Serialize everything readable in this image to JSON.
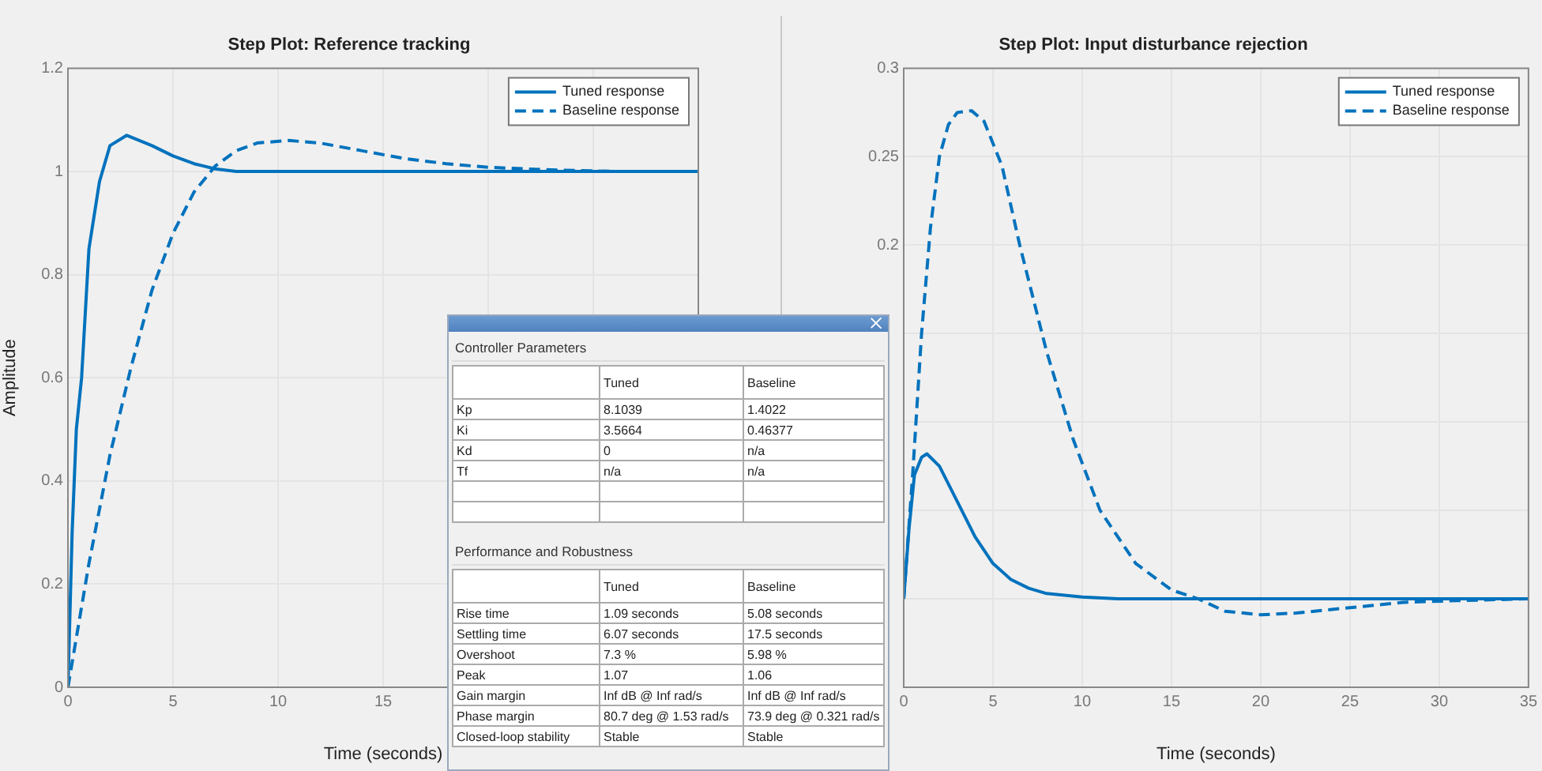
{
  "chart_data": [
    {
      "type": "line",
      "title": "Step Plot: Reference tracking",
      "xlabel": "Time (seconds)",
      "ylabel": "Amplitude",
      "xlim": [
        0,
        30
      ],
      "xticks": [
        0,
        5,
        10,
        15,
        {
          "value": 20,
          "label": null
        },
        {
          "value": 25,
          "label": null
        },
        {
          "value": 30,
          "label": null
        }
      ],
      "ylim": [
        0,
        1.2
      ],
      "yticks": [
        0,
        0.2,
        0.4,
        0.6,
        0.8,
        1,
        1.2
      ],
      "grid": true,
      "legend": "top right",
      "marker": "none",
      "series": [
        {
          "name": "Tuned response",
          "color": "#0072bd",
          "line_style": "solid",
          "x": [
            0,
            0.2,
            0.4,
            0.65,
            1,
            1.5,
            2,
            2.8,
            4,
            5,
            6,
            7,
            8,
            10,
            15,
            20,
            25,
            30
          ],
          "values": [
            0,
            0.3,
            0.5,
            0.6,
            0.85,
            0.98,
            1.05,
            1.07,
            1.05,
            1.03,
            1.015,
            1.005,
            1,
            1,
            1,
            1,
            1,
            1
          ]
        },
        {
          "name": "Baseline response",
          "color": "#0072bd",
          "line_style": "dashed",
          "x": [
            0,
            0.5,
            1,
            2,
            3,
            4,
            5,
            6,
            7,
            8,
            9,
            10.5,
            12,
            14,
            16,
            18,
            20,
            23,
            26,
            30
          ],
          "values": [
            0,
            0.12,
            0.24,
            0.45,
            0.62,
            0.77,
            0.88,
            0.96,
            1.01,
            1.04,
            1.055,
            1.06,
            1.055,
            1.04,
            1.025,
            1.015,
            1.008,
            1.003,
            1,
            1
          ]
        }
      ]
    },
    {
      "type": "line",
      "title": "Step Plot: Input disturbance rejection",
      "xlabel": "Time (seconds)",
      "xlim": [
        0,
        35
      ],
      "xticks": [
        0,
        5,
        10,
        15,
        20,
        25,
        30,
        35
      ],
      "ylim": [
        -0.05,
        0.3
      ],
      "yticks": [
        {
          "value": -0.05,
          "label": null
        },
        {
          "value": 0,
          "label": null
        },
        {
          "value": 0.05,
          "label": null
        },
        {
          "value": 0.1,
          "label": null
        },
        {
          "value": 0.15,
          "label": null
        },
        0.2,
        0.25,
        0.3
      ],
      "grid": true,
      "legend": "top right",
      "marker": "none",
      "series": [
        {
          "name": "Tuned response",
          "color": "#0072bd",
          "line_style": "solid",
          "x": [
            0,
            0.3,
            0.6,
            1,
            1.3,
            2,
            3,
            4,
            5,
            6,
            7,
            8,
            10,
            12,
            35
          ],
          "values": [
            0,
            0.04,
            0.07,
            0.08,
            0.082,
            0.075,
            0.055,
            0.035,
            0.02,
            0.011,
            0.006,
            0.003,
            0.001,
            0,
            0
          ]
        },
        {
          "name": "Baseline response",
          "color": "#0072bd",
          "line_style": "dashed",
          "x": [
            0,
            0.5,
            1,
            1.5,
            2,
            2.5,
            3,
            3.8,
            4.5,
            5.5,
            6.5,
            8,
            9.5,
            11,
            13,
            15,
            16.5,
            18,
            20,
            22,
            25,
            28,
            31,
            35
          ],
          "values": [
            0,
            0.07,
            0.15,
            0.21,
            0.25,
            0.268,
            0.275,
            0.276,
            0.27,
            0.245,
            0.2,
            0.14,
            0.09,
            0.05,
            0.02,
            0.005,
            0,
            -0.007,
            -0.009,
            -0.008,
            -0.005,
            -0.002,
            -0.001,
            0
          ]
        }
      ]
    },
    {
      "type": "other",
      "title": "Controller Parameters",
      "annotations": [
        "Tuned",
        "Baseline",
        "Kp",
        "8.1039",
        "1.4022",
        "Ki",
        "3.5664",
        "0.46377",
        "Kd",
        "0",
        "n/a",
        "Tf",
        "n/a",
        "n/a"
      ]
    },
    {
      "type": "other",
      "title": "Performance and Robustness",
      "annotations": [
        "Tuned",
        "Baseline",
        "Rise time",
        "1.09 seconds",
        "5.08 seconds",
        "Settling time",
        "6.07 seconds",
        "17.5 seconds",
        "Overshoot",
        "7.3 %",
        "5.98 %",
        "Peak",
        "1.07",
        "1.06",
        "Gain margin",
        "Inf dB @ Inf rad/s",
        "Inf dB @ Inf rad/s",
        "Phase margin",
        "80.7 deg @ 1.53 rad/s",
        "73.9 deg @ 0.321 rad/s",
        "Closed-loop stability",
        "Stable",
        "Stable"
      ]
    }
  ]
}
